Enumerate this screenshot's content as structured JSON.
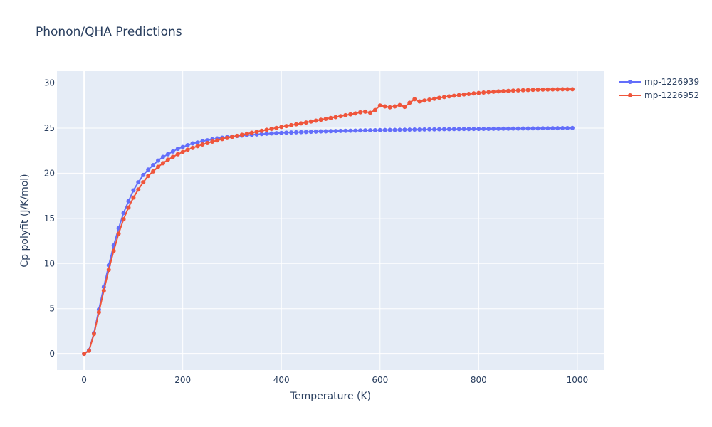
{
  "chart_data": {
    "type": "line",
    "title": "Phonon/QHA Predictions",
    "xlabel": "Temperature (K)",
    "ylabel": "Cp polyfit (J/K/mol)",
    "xlim": [
      -55,
      1055
    ],
    "ylim": [
      -1.8,
      31.3
    ],
    "xticks": [
      0,
      200,
      400,
      600,
      800,
      1000
    ],
    "yticks": [
      0,
      5,
      10,
      15,
      20,
      25,
      30
    ],
    "grid": true,
    "legend_position": "top-right",
    "series": [
      {
        "name": "mp-1226939",
        "color": "#636efa",
        "x": [
          0,
          10,
          20,
          30,
          40,
          50,
          60,
          70,
          80,
          90,
          100,
          110,
          120,
          130,
          140,
          150,
          160,
          170,
          180,
          190,
          200,
          210,
          220,
          230,
          240,
          250,
          260,
          270,
          280,
          290,
          300,
          310,
          320,
          330,
          340,
          350,
          360,
          370,
          380,
          390,
          400,
          410,
          420,
          430,
          440,
          450,
          460,
          470,
          480,
          490,
          500,
          510,
          520,
          530,
          540,
          550,
          560,
          570,
          580,
          590,
          600,
          610,
          620,
          630,
          640,
          650,
          660,
          670,
          680,
          690,
          700,
          710,
          720,
          730,
          740,
          750,
          760,
          770,
          780,
          790,
          800,
          810,
          820,
          830,
          840,
          850,
          860,
          870,
          880,
          890,
          900,
          910,
          920,
          930,
          940,
          950,
          960,
          970,
          980,
          990
        ],
        "y": [
          0,
          0.4,
          2.3,
          4.9,
          7.4,
          9.8,
          12.0,
          13.9,
          15.6,
          16.9,
          18.1,
          19.0,
          19.8,
          20.4,
          20.9,
          21.4,
          21.8,
          22.1,
          22.4,
          22.7,
          22.9,
          23.1,
          23.3,
          23.4,
          23.55,
          23.65,
          23.75,
          23.85,
          23.93,
          24.0,
          24.06,
          24.12,
          24.17,
          24.22,
          24.26,
          24.3,
          24.34,
          24.37,
          24.4,
          24.43,
          24.46,
          24.49,
          24.51,
          24.53,
          24.55,
          24.57,
          24.59,
          24.61,
          24.63,
          24.64,
          24.66,
          24.67,
          24.69,
          24.7,
          24.71,
          24.72,
          24.74,
          24.75,
          24.76,
          24.77,
          24.78,
          24.79,
          24.8,
          24.8,
          24.81,
          24.82,
          24.83,
          24.84,
          24.84,
          24.85,
          24.86,
          24.86,
          24.87,
          24.88,
          24.88,
          24.89,
          24.89,
          24.9,
          24.9,
          24.91,
          24.91,
          24.92,
          24.92,
          24.93,
          24.93,
          24.94,
          24.94,
          24.95,
          24.95,
          24.96,
          24.96,
          24.97,
          24.97,
          24.98,
          24.98,
          24.99,
          24.99,
          25.0,
          25.0,
          25.01
        ]
      },
      {
        "name": "mp-1226952",
        "color": "#ef553b",
        "x": [
          0,
          10,
          20,
          30,
          40,
          50,
          60,
          70,
          80,
          90,
          100,
          110,
          120,
          130,
          140,
          150,
          160,
          170,
          180,
          190,
          200,
          210,
          220,
          230,
          240,
          250,
          260,
          270,
          280,
          290,
          300,
          310,
          320,
          330,
          340,
          350,
          360,
          370,
          380,
          390,
          400,
          410,
          420,
          430,
          440,
          450,
          460,
          470,
          480,
          490,
          500,
          510,
          520,
          530,
          540,
          550,
          560,
          570,
          580,
          590,
          600,
          610,
          620,
          630,
          640,
          650,
          660,
          670,
          680,
          690,
          700,
          710,
          720,
          730,
          740,
          750,
          760,
          770,
          780,
          790,
          800,
          810,
          820,
          830,
          840,
          850,
          860,
          870,
          880,
          890,
          900,
          910,
          920,
          930,
          940,
          950,
          960,
          970,
          980,
          990
        ],
        "y": [
          0,
          0.35,
          2.2,
          4.6,
          7.0,
          9.3,
          11.4,
          13.3,
          14.9,
          16.2,
          17.3,
          18.2,
          19.0,
          19.7,
          20.2,
          20.7,
          21.1,
          21.5,
          21.8,
          22.1,
          22.35,
          22.6,
          22.8,
          23.0,
          23.18,
          23.34,
          23.5,
          23.64,
          23.78,
          23.9,
          24.02,
          24.14,
          24.26,
          24.37,
          24.48,
          24.59,
          24.7,
          24.81,
          24.92,
          25.02,
          25.12,
          25.22,
          25.32,
          25.42,
          25.52,
          25.62,
          25.72,
          25.82,
          25.92,
          26.02,
          26.12,
          26.22,
          26.32,
          26.42,
          26.52,
          26.62,
          26.75,
          26.82,
          26.7,
          27.0,
          27.5,
          27.4,
          27.3,
          27.4,
          27.55,
          27.35,
          27.8,
          28.2,
          27.95,
          28.05,
          28.15,
          28.25,
          28.35,
          28.43,
          28.51,
          28.58,
          28.65,
          28.72,
          28.78,
          28.84,
          28.89,
          28.94,
          28.98,
          29.02,
          29.06,
          29.09,
          29.12,
          29.15,
          29.17,
          29.19,
          29.21,
          29.23,
          29.25,
          29.26,
          29.27,
          29.28,
          29.29,
          29.3,
          29.3,
          29.3
        ]
      }
    ]
  }
}
